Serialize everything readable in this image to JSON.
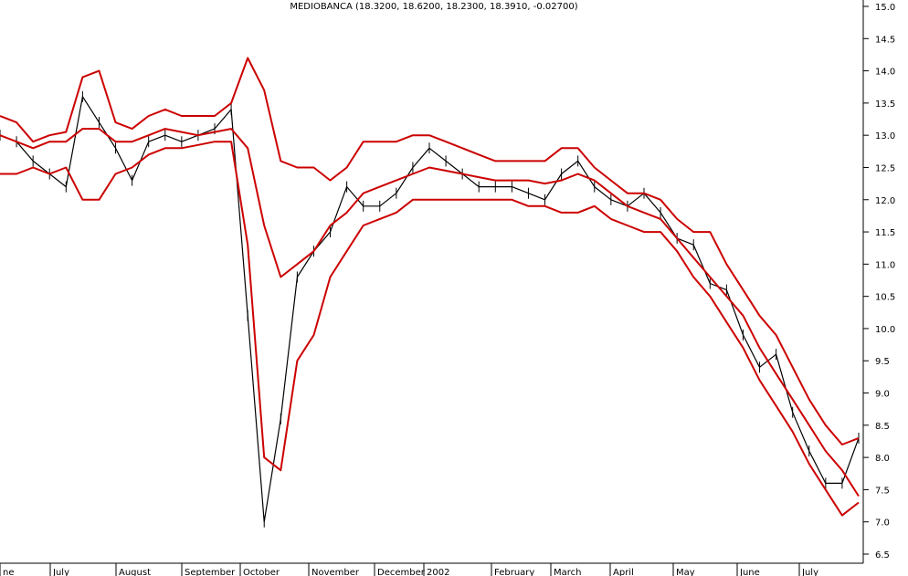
{
  "chart_data": {
    "type": "line",
    "title": "MEDIOBANCA (18.3200, 18.6200, 18.2300, 18.3910, -0.02700)",
    "ylim": [
      6.5,
      15.0
    ],
    "y_ticks": [
      "15.0",
      "14.5",
      "14.0",
      "13.5",
      "13.0",
      "12.5",
      "12.0",
      "11.5",
      "11.0",
      "10.5",
      "10.0",
      "9.5",
      "9.0",
      "8.5",
      "8.0",
      "7.5",
      "7.0",
      "6.5"
    ],
    "x_ticks": [
      "ne",
      "July",
      "August",
      "September",
      "October",
      "November",
      "December",
      "2002",
      "February",
      "March",
      "April",
      "May",
      "June",
      "July"
    ],
    "grid": false,
    "colors": {
      "price": "#000000",
      "bands": "#cc0000"
    },
    "series": [
      {
        "values": [
          13.0,
          12.9,
          12.6,
          12.4,
          12.2,
          13.6,
          13.2,
          12.8,
          12.3,
          12.9,
          13.0,
          12.9,
          13.0,
          13.1,
          13.4,
          10.2,
          7.0,
          8.6,
          10.8,
          11.2,
          11.5,
          12.2,
          11.9,
          11.9,
          12.1,
          12.5,
          12.8,
          12.6,
          12.4,
          12.2,
          12.2,
          12.2,
          12.1,
          12.0,
          12.4,
          12.6,
          12.2,
          12.0,
          11.9,
          12.1,
          11.8,
          11.4,
          11.3,
          10.7,
          10.6,
          9.9,
          9.4,
          9.6,
          8.7,
          8.1,
          7.6,
          7.6,
          8.3
        ]
      },
      {
        "values": [
          13.3,
          13.2,
          12.9,
          13.0,
          13.05,
          13.9,
          14.0,
          13.2,
          13.1,
          13.3,
          13.4,
          13.3,
          13.3,
          13.3,
          13.5,
          14.2,
          13.7,
          12.6,
          12.5,
          12.5,
          12.3,
          12.5,
          12.9,
          12.9,
          12.9,
          13.0,
          13.0,
          12.9,
          12.8,
          12.7,
          12.6,
          12.6,
          12.6,
          12.6,
          12.8,
          12.8,
          12.5,
          12.3,
          12.1,
          12.1,
          12.0,
          11.7,
          11.5,
          11.5,
          11.0,
          10.6,
          10.2,
          9.9,
          9.4,
          8.9,
          8.5,
          8.2,
          8.3
        ]
      },
      {
        "values": [
          13.0,
          12.9,
          12.8,
          12.9,
          12.9,
          13.1,
          13.1,
          12.9,
          12.9,
          13.0,
          13.1,
          13.05,
          13.0,
          13.05,
          13.1,
          12.8,
          11.6,
          10.8,
          11.0,
          11.2,
          11.6,
          11.8,
          12.1,
          12.2,
          12.3,
          12.4,
          12.5,
          12.45,
          12.4,
          12.35,
          12.3,
          12.3,
          12.3,
          12.25,
          12.3,
          12.4,
          12.3,
          12.1,
          11.9,
          11.8,
          11.7,
          11.4,
          11.1,
          10.8,
          10.5,
          10.2,
          9.7,
          9.3,
          8.9,
          8.5,
          8.1,
          7.8,
          7.4
        ]
      },
      {
        "values": [
          12.4,
          12.4,
          12.5,
          12.4,
          12.5,
          12.0,
          12.0,
          12.4,
          12.5,
          12.7,
          12.8,
          12.8,
          12.85,
          12.9,
          12.9,
          11.3,
          8.0,
          7.8,
          9.5,
          9.9,
          10.8,
          11.2,
          11.6,
          11.7,
          11.8,
          12.0,
          12.0,
          12.0,
          12.0,
          12.0,
          12.0,
          12.0,
          11.9,
          11.9,
          11.8,
          11.8,
          11.9,
          11.7,
          11.6,
          11.5,
          11.5,
          11.2,
          10.8,
          10.5,
          10.1,
          9.7,
          9.2,
          8.8,
          8.4,
          7.9,
          7.5,
          7.1,
          7.3
        ]
      }
    ]
  }
}
